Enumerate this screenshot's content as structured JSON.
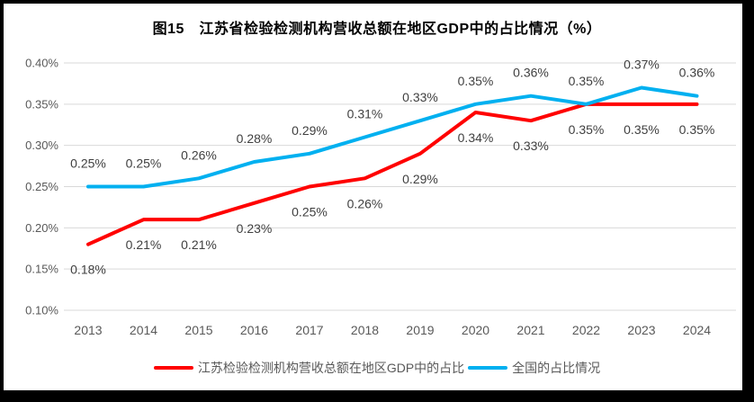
{
  "title": "图15　江苏省检验检测机构营收总额在地区GDP中的占比情况（%）",
  "colors": {
    "frame": "#000000",
    "background": "#FFFFFF",
    "grid": "#D9D9D9",
    "axis_text": "#595959",
    "data_label": "#404040",
    "title_text": "#000000"
  },
  "chart_data": {
    "type": "line",
    "title": "图15　江苏省检验检测机构营收总额在地区GDP中的占比情况（%）",
    "categories": [
      "2013",
      "2014",
      "2015",
      "2016",
      "2017",
      "2018",
      "2019",
      "2020",
      "2021",
      "2022",
      "2023",
      "2024"
    ],
    "series": [
      {
        "name": "江苏检验检测机构营收总额在地区GDP中的占比",
        "color": "#FF0000",
        "values": [
          0.18,
          0.21,
          0.21,
          0.23,
          0.25,
          0.26,
          0.29,
          0.34,
          0.33,
          0.35,
          0.35,
          0.35
        ],
        "point_labels": [
          "0.18%",
          "0.21%",
          "0.21%",
          "0.23%",
          "0.25%",
          "0.26%",
          "0.29%",
          "0.34%",
          "0.33%",
          "0.35%",
          "0.35%",
          "0.35%"
        ],
        "label_position": "below"
      },
      {
        "name": "全国的占比情况",
        "color": "#00B0F0",
        "values": [
          0.25,
          0.25,
          0.26,
          0.28,
          0.29,
          0.31,
          0.33,
          0.35,
          0.36,
          0.35,
          0.37,
          0.36
        ],
        "point_labels": [
          "0.25%",
          "0.25%",
          "0.26%",
          "0.28%",
          "0.29%",
          "0.31%",
          "0.33%",
          "0.35%",
          "0.36%",
          "0.35%",
          "0.37%",
          "0.36%"
        ],
        "label_position": "above"
      }
    ],
    "ylim": [
      0.1,
      0.4
    ],
    "y_ticks": [
      {
        "value": 0.4,
        "label": "0.40%"
      },
      {
        "value": 0.35,
        "label": "0.35%"
      },
      {
        "value": 0.3,
        "label": "0.30%"
      },
      {
        "value": 0.25,
        "label": "0.25%"
      },
      {
        "value": 0.2,
        "label": "0.20%"
      },
      {
        "value": 0.15,
        "label": "0.15%"
      },
      {
        "value": 0.1,
        "label": "0.10%"
      }
    ],
    "grid": "horizontal",
    "legend_position": "bottom",
    "unit": "%"
  }
}
